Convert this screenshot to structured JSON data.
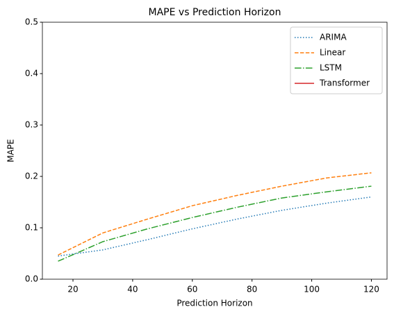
{
  "chart_data": {
    "type": "line",
    "title": "MAPE vs Prediction Horizon",
    "xlabel": "Prediction Horizon",
    "ylabel": "MAPE",
    "x": [
      15,
      30,
      45,
      60,
      75,
      90,
      105,
      120
    ],
    "series": [
      {
        "name": "ARIMA",
        "color": "#1f77b4",
        "linestyle": "dotted",
        "values": [
          0.045,
          0.057,
          0.077,
          0.098,
          0.117,
          0.134,
          0.148,
          0.16
        ]
      },
      {
        "name": "Linear",
        "color": "#ff7f0e",
        "linestyle": "dashed",
        "values": [
          0.047,
          0.09,
          0.117,
          0.143,
          0.163,
          0.181,
          0.197,
          0.207
        ]
      },
      {
        "name": "LSTM",
        "color": "#2ca02c",
        "linestyle": "dashdot",
        "values": [
          0.035,
          0.073,
          0.098,
          0.12,
          0.14,
          0.158,
          0.17,
          0.181
        ]
      },
      {
        "name": "Transformer",
        "color": "#d62728",
        "linestyle": "solid",
        "values": [
          null,
          null,
          null,
          null,
          null,
          null,
          null,
          null
        ]
      }
    ],
    "xlim": [
      9.75,
      125.25
    ],
    "xticks": [
      20,
      40,
      60,
      80,
      100,
      120
    ],
    "ylim": [
      0,
      0.5
    ],
    "yticks": [
      {
        "value": 0,
        "label": "0.0"
      },
      0.1,
      0.2,
      0.3,
      0.4,
      0.5
    ],
    "legend": "upper right",
    "grid": false
  }
}
